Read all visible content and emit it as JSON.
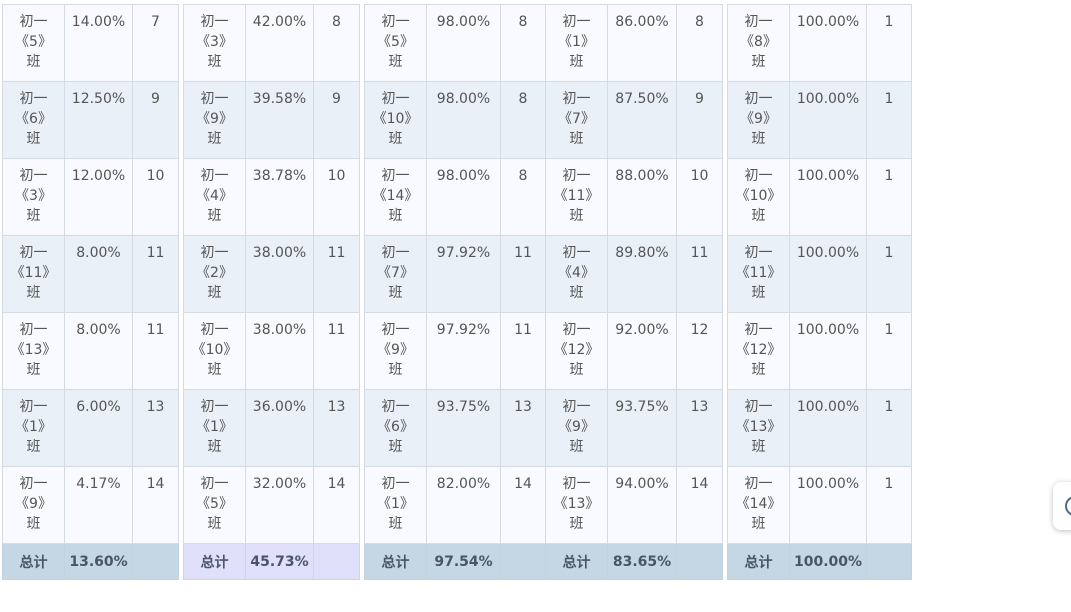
{
  "panels": [
    {
      "total_label": "总计",
      "total_pct": "13.60%",
      "total_rank": "",
      "rows": [
        {
          "name": [
            "初一",
            "《5》",
            "班"
          ],
          "pct": "14.00%",
          "rank": "7"
        },
        {
          "name": [
            "初一",
            "《6》",
            "班"
          ],
          "pct": "12.50%",
          "rank": "9"
        },
        {
          "name": [
            "初一",
            "《3》",
            "班"
          ],
          "pct": "12.00%",
          "rank": "10"
        },
        {
          "name": [
            "初一",
            "《11》",
            "班"
          ],
          "pct": "8.00%",
          "rank": "11"
        },
        {
          "name": [
            "初一",
            "《13》",
            "班"
          ],
          "pct": "8.00%",
          "rank": "11"
        },
        {
          "name": [
            "初一",
            "《1》",
            "班"
          ],
          "pct": "6.00%",
          "rank": "13"
        },
        {
          "name": [
            "初一",
            "《9》",
            "班"
          ],
          "pct": "4.17%",
          "rank": "14"
        }
      ]
    },
    {
      "total_label": "总计",
      "total_pct": "45.73%",
      "total_rank": "",
      "rows": [
        {
          "name": [
            "初一",
            "《3》",
            "班"
          ],
          "pct": "42.00%",
          "rank": "8"
        },
        {
          "name": [
            "初一",
            "《9》",
            "班"
          ],
          "pct": "39.58%",
          "rank": "9"
        },
        {
          "name": [
            "初一",
            "《4》",
            "班"
          ],
          "pct": "38.78%",
          "rank": "10"
        },
        {
          "name": [
            "初一",
            "《2》",
            "班"
          ],
          "pct": "38.00%",
          "rank": "11"
        },
        {
          "name": [
            "初一",
            "《10》",
            "班"
          ],
          "pct": "38.00%",
          "rank": "11"
        },
        {
          "name": [
            "初一",
            "《1》",
            "班"
          ],
          "pct": "36.00%",
          "rank": "13"
        },
        {
          "name": [
            "初一",
            "《5》",
            "班"
          ],
          "pct": "32.00%",
          "rank": "14"
        }
      ]
    },
    {
      "total_label": "总计",
      "total_pct": "97.54%",
      "total_rank": "",
      "rows": [
        {
          "name": [
            "初一",
            "《5》",
            "班"
          ],
          "pct": "98.00%",
          "rank": "8"
        },
        {
          "name": [
            "初一",
            "《10》",
            "班"
          ],
          "pct": "98.00%",
          "rank": "8"
        },
        {
          "name": [
            "初一",
            "《14》",
            "班"
          ],
          "pct": "98.00%",
          "rank": "8"
        },
        {
          "name": [
            "初一",
            "《7》",
            "班"
          ],
          "pct": "97.92%",
          "rank": "11"
        },
        {
          "name": [
            "初一",
            "《9》",
            "班"
          ],
          "pct": "97.92%",
          "rank": "11"
        },
        {
          "name": [
            "初一",
            "《6》",
            "班"
          ],
          "pct": "93.75%",
          "rank": "13"
        },
        {
          "name": [
            "初一",
            "《1》",
            "班"
          ],
          "pct": "82.00%",
          "rank": "14"
        }
      ]
    },
    {
      "total_label": "总计",
      "total_pct": "83.65%",
      "total_rank": "",
      "rows": [
        {
          "name": [
            "初一",
            "《1》",
            "班"
          ],
          "pct": "86.00%",
          "rank": "8"
        },
        {
          "name": [
            "初一",
            "《7》",
            "班"
          ],
          "pct": "87.50%",
          "rank": "9"
        },
        {
          "name": [
            "初一",
            "《11》",
            "班"
          ],
          "pct": "88.00%",
          "rank": "10"
        },
        {
          "name": [
            "初一",
            "《4》",
            "班"
          ],
          "pct": "89.80%",
          "rank": "11"
        },
        {
          "name": [
            "初一",
            "《12》",
            "班"
          ],
          "pct": "92.00%",
          "rank": "12"
        },
        {
          "name": [
            "初一",
            "《9》",
            "班"
          ],
          "pct": "93.75%",
          "rank": "13"
        },
        {
          "name": [
            "初一",
            "《13》",
            "班"
          ],
          "pct": "94.00%",
          "rank": "14"
        }
      ]
    },
    {
      "total_label": "总计",
      "total_pct": "100.00%",
      "total_rank": "",
      "rows": [
        {
          "name": [
            "初一",
            "《8》",
            "班"
          ],
          "pct": "100.00%",
          "rank": "1"
        },
        {
          "name": [
            "初一",
            "《9》",
            "班"
          ],
          "pct": "100.00%",
          "rank": "1"
        },
        {
          "name": [
            "初一",
            "《10》",
            "班"
          ],
          "pct": "100.00%",
          "rank": "1"
        },
        {
          "name": [
            "初一",
            "《11》",
            "班"
          ],
          "pct": "100.00%",
          "rank": "1"
        },
        {
          "name": [
            "初一",
            "《12》",
            "班"
          ],
          "pct": "100.00%",
          "rank": "1"
        },
        {
          "name": [
            "初一",
            "《13》",
            "班"
          ],
          "pct": "100.00%",
          "rank": "1"
        },
        {
          "name": [
            "初一",
            "《14》",
            "班"
          ],
          "pct": "100.00%",
          "rank": "1"
        }
      ]
    }
  ],
  "colors": {
    "row_odd": "#f8faff",
    "row_even": "#e9f0f8",
    "total_blue": "#c5d6e5",
    "total_purple": "#e1e0fb",
    "text": "#555555"
  },
  "floating_button": {
    "icon": "assistant-icon"
  }
}
